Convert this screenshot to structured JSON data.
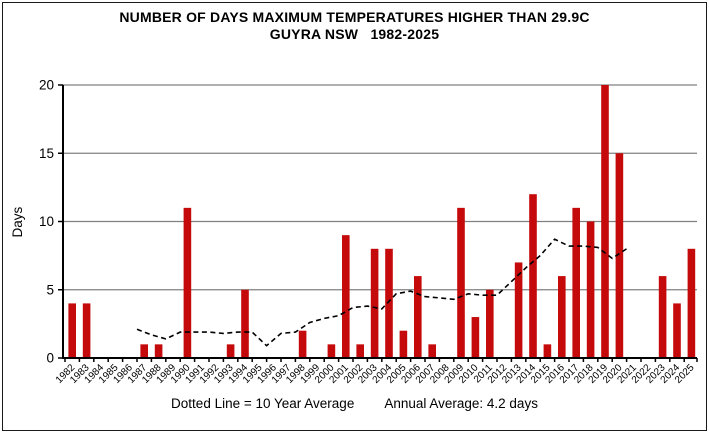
{
  "title": {
    "line1": "NUMBER OF DAYS MAXIMUM TEMPERATURES HIGHER THAN 29.9C",
    "line2": "GUYRA NSW   1982-2025"
  },
  "footer": {
    "legend_note": "Dotted Line = 10 Year Average",
    "annual_average": "Annual Average: 4.2 days"
  },
  "colors": {
    "bar": "#C40A0A",
    "gridline": "#808080",
    "axis": "#000000",
    "average_line": "#000000",
    "text": "#000000",
    "background": "#FFFFFF",
    "border": "#1A1A1A"
  },
  "chart_data": {
    "type": "bar",
    "title": "NUMBER OF DAYS MAXIMUM TEMPERATURES HIGHER THAN 29.9C",
    "subtitle": "GUYRA NSW 1982-2025",
    "xlabel": "",
    "ylabel": "Days",
    "ylim": [
      0,
      20
    ],
    "yticks": [
      0,
      5,
      10,
      15,
      20
    ],
    "grid": "horizontal",
    "legend_position": "none",
    "categories": [
      "1982",
      "1983",
      "1984",
      "1985",
      "1986",
      "1987",
      "1988",
      "1989",
      "1990",
      "1991",
      "1992",
      "1993",
      "1994",
      "1995",
      "1996",
      "1997",
      "1998",
      "1999",
      "2000",
      "2001",
      "2002",
      "2003",
      "2004",
      "2005",
      "2006",
      "2007",
      "2008",
      "2009",
      "2010",
      "2011",
      "2012",
      "2013",
      "2014",
      "2015",
      "2016",
      "2017",
      "2018",
      "2019",
      "2020",
      "2021",
      "2022",
      "2023",
      "2024",
      "2025"
    ],
    "values": [
      4,
      4,
      0,
      0,
      0,
      1,
      1,
      0,
      11,
      0,
      0,
      1,
      5,
      0,
      0,
      0,
      2,
      0,
      1,
      9,
      1,
      8,
      8,
      2,
      6,
      1,
      0,
      11,
      3,
      5,
      0,
      7,
      12,
      1,
      6,
      11,
      10,
      20,
      15,
      0,
      0,
      6,
      4,
      8
    ],
    "overlay_line": {
      "name": "10 Year Average",
      "style": "dashed",
      "points": [
        [
          1986.5,
          2.1
        ],
        [
          1987.5,
          1.7
        ],
        [
          1988.5,
          1.4
        ],
        [
          1989.5,
          1.9
        ],
        [
          1990.5,
          1.9
        ],
        [
          1991.5,
          1.9
        ],
        [
          1992.5,
          1.8
        ],
        [
          1993.5,
          1.9
        ],
        [
          1994.5,
          1.9
        ],
        [
          1995.5,
          0.9
        ],
        [
          1996.5,
          1.8
        ],
        [
          1997.5,
          1.9
        ],
        [
          1998.5,
          2.6
        ],
        [
          1999.5,
          2.9
        ],
        [
          2000.5,
          3.1
        ],
        [
          2001.5,
          3.7
        ],
        [
          2002.5,
          3.8
        ],
        [
          2003.5,
          3.6
        ],
        [
          2004.5,
          4.7
        ],
        [
          2005.5,
          4.9
        ],
        [
          2006.5,
          4.5
        ],
        [
          2007.5,
          4.4
        ],
        [
          2008.5,
          4.3
        ],
        [
          2009.5,
          4.7
        ],
        [
          2010.5,
          4.6
        ],
        [
          2011.5,
          4.6
        ],
        [
          2012.5,
          5.6
        ],
        [
          2013.5,
          6.6
        ],
        [
          2014.5,
          7.5
        ],
        [
          2015.5,
          8.7
        ],
        [
          2016.5,
          8.2
        ],
        [
          2017.5,
          8.2
        ],
        [
          2018.5,
          8.1
        ],
        [
          2019.5,
          7.3
        ],
        [
          2020.5,
          8.0
        ]
      ]
    },
    "annotations": [
      "Dotted Line = 10 Year Average",
      "Annual Average: 4.2 days"
    ]
  }
}
